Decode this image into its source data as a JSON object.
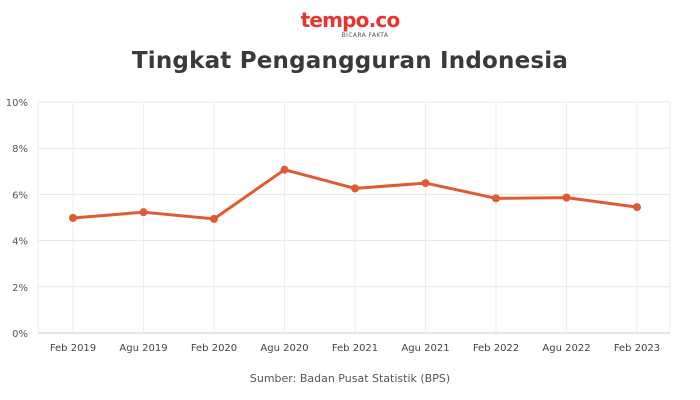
{
  "brand": {
    "logo_text": "tempo.co",
    "tagline": "BICARA FAKTA"
  },
  "source_note": "Sumber: Badan Pusat Statistik (BPS)",
  "colors": {
    "line": "#e05a33",
    "logo": "#e8352f"
  },
  "chart_data": {
    "type": "line",
    "title": "Tingkat Pengangguran Indonesia",
    "xlabel": "",
    "ylabel": "",
    "categories": [
      "Feb 2019",
      "Agu 2019",
      "Feb 2020",
      "Agu 2020",
      "Feb 2021",
      "Agu 2021",
      "Feb 2022",
      "Agu 2022",
      "Feb 2023"
    ],
    "values": [
      4.98,
      5.23,
      4.94,
      7.07,
      6.26,
      6.49,
      5.83,
      5.86,
      5.45
    ],
    "ylim": [
      0,
      10
    ],
    "yticks": [
      0,
      2,
      4,
      6,
      8,
      10
    ],
    "ytick_labels": [
      "0%",
      "2%",
      "4%",
      "6%",
      "8%",
      "10%"
    ],
    "grid": true,
    "legend": "none"
  }
}
